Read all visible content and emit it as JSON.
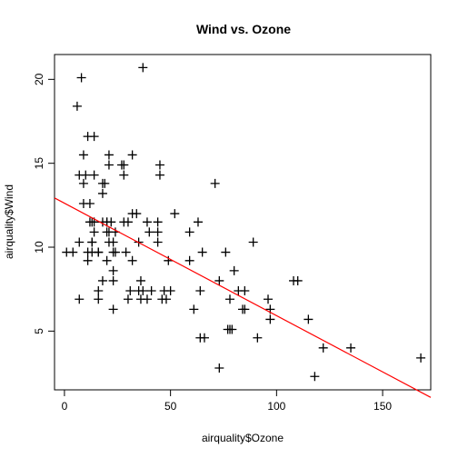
{
  "chart_data": {
    "type": "scatter",
    "title": "Wind vs. Ozone",
    "xlabel": "airquality$Ozone",
    "ylabel": "airquality$Wind",
    "xlim": [
      -4.68,
      172.68
    ],
    "ylim": [
      1.5,
      21.48
    ],
    "x_ticks": [
      0,
      50,
      100,
      150
    ],
    "y_ticks": [
      5,
      10,
      15,
      20
    ],
    "grid": false,
    "marker": "plus",
    "point_color": "#000000",
    "points": [
      {
        "x": 41,
        "y": 7.4
      },
      {
        "x": 36,
        "y": 8.0
      },
      {
        "x": 12,
        "y": 12.6
      },
      {
        "x": 18,
        "y": 11.5
      },
      {
        "x": 28,
        "y": 14.9
      },
      {
        "x": 23,
        "y": 8.6
      },
      {
        "x": 19,
        "y": 13.8
      },
      {
        "x": 8,
        "y": 20.1
      },
      {
        "x": 7,
        "y": 6.9
      },
      {
        "x": 16,
        "y": 9.7
      },
      {
        "x": 11,
        "y": 9.2
      },
      {
        "x": 14,
        "y": 10.9
      },
      {
        "x": 18,
        "y": 13.2
      },
      {
        "x": 14,
        "y": 11.5
      },
      {
        "x": 34,
        "y": 12.0
      },
      {
        "x": 6,
        "y": 18.4
      },
      {
        "x": 30,
        "y": 11.5
      },
      {
        "x": 11,
        "y": 9.7
      },
      {
        "x": 1,
        "y": 9.7
      },
      {
        "x": 11,
        "y": 16.6
      },
      {
        "x": 4,
        "y": 9.7
      },
      {
        "x": 32,
        "y": 12.0
      },
      {
        "x": 45,
        "y": 14.9
      },
      {
        "x": 115,
        "y": 5.7
      },
      {
        "x": 37,
        "y": 7.4
      },
      {
        "x": 29,
        "y": 9.7
      },
      {
        "x": 71,
        "y": 13.8
      },
      {
        "x": 39,
        "y": 11.5
      },
      {
        "x": 23,
        "y": 8.0
      },
      {
        "x": 21,
        "y": 14.9
      },
      {
        "x": 37,
        "y": 20.7
      },
      {
        "x": 20,
        "y": 9.2
      },
      {
        "x": 12,
        "y": 11.5
      },
      {
        "x": 13,
        "y": 10.3
      },
      {
        "x": 135,
        "y": 4.0
      },
      {
        "x": 49,
        "y": 9.2
      },
      {
        "x": 32,
        "y": 9.2
      },
      {
        "x": 64,
        "y": 4.6
      },
      {
        "x": 40,
        "y": 10.9
      },
      {
        "x": 77,
        "y": 5.1
      },
      {
        "x": 97,
        "y": 6.3
      },
      {
        "x": 97,
        "y": 5.7
      },
      {
        "x": 85,
        "y": 7.4
      },
      {
        "x": 10,
        "y": 14.3
      },
      {
        "x": 27,
        "y": 14.9
      },
      {
        "x": 7,
        "y": 14.3
      },
      {
        "x": 48,
        "y": 6.9
      },
      {
        "x": 35,
        "y": 10.3
      },
      {
        "x": 61,
        "y": 6.3
      },
      {
        "x": 79,
        "y": 5.1
      },
      {
        "x": 63,
        "y": 11.5
      },
      {
        "x": 16,
        "y": 6.9
      },
      {
        "x": 80,
        "y": 8.6
      },
      {
        "x": 108,
        "y": 8.0
      },
      {
        "x": 20,
        "y": 11.5
      },
      {
        "x": 52,
        "y": 12.0
      },
      {
        "x": 82,
        "y": 7.4
      },
      {
        "x": 50,
        "y": 7.4
      },
      {
        "x": 64,
        "y": 7.4
      },
      {
        "x": 59,
        "y": 9.2
      },
      {
        "x": 39,
        "y": 6.9
      },
      {
        "x": 9,
        "y": 13.8
      },
      {
        "x": 16,
        "y": 7.4
      },
      {
        "x": 78,
        "y": 6.9
      },
      {
        "x": 35,
        "y": 7.4
      },
      {
        "x": 66,
        "y": 4.6
      },
      {
        "x": 122,
        "y": 4.0
      },
      {
        "x": 89,
        "y": 10.3
      },
      {
        "x": 110,
        "y": 8.0
      },
      {
        "x": 44,
        "y": 11.5
      },
      {
        "x": 28,
        "y": 11.5
      },
      {
        "x": 65,
        "y": 9.7
      },
      {
        "x": 22,
        "y": 11.5
      },
      {
        "x": 59,
        "y": 10.9
      },
      {
        "x": 23,
        "y": 9.7
      },
      {
        "x": 31,
        "y": 7.4
      },
      {
        "x": 44,
        "y": 10.9
      },
      {
        "x": 21,
        "y": 10.3
      },
      {
        "x": 9,
        "y": 15.5
      },
      {
        "x": 45,
        "y": 14.3
      },
      {
        "x": 168,
        "y": 3.4
      },
      {
        "x": 73,
        "y": 8.0
      },
      {
        "x": 76,
        "y": 9.7
      },
      {
        "x": 118,
        "y": 2.3
      },
      {
        "x": 84,
        "y": 6.3
      },
      {
        "x": 85,
        "y": 6.3
      },
      {
        "x": 96,
        "y": 6.9
      },
      {
        "x": 78,
        "y": 5.1
      },
      {
        "x": 73,
        "y": 2.8
      },
      {
        "x": 91,
        "y": 4.6
      },
      {
        "x": 47,
        "y": 7.4
      },
      {
        "x": 32,
        "y": 15.5
      },
      {
        "x": 20,
        "y": 10.9
      },
      {
        "x": 23,
        "y": 10.3
      },
      {
        "x": 21,
        "y": 10.9
      },
      {
        "x": 24,
        "y": 9.7
      },
      {
        "x": 44,
        "y": 10.3
      },
      {
        "x": 21,
        "y": 15.5
      },
      {
        "x": 28,
        "y": 14.3
      },
      {
        "x": 9,
        "y": 12.6
      },
      {
        "x": 13,
        "y": 9.7
      },
      {
        "x": 46,
        "y": 6.9
      },
      {
        "x": 18,
        "y": 13.8
      },
      {
        "x": 13,
        "y": 11.5
      },
      {
        "x": 24,
        "y": 10.9
      },
      {
        "x": 16,
        "y": 9.7
      },
      {
        "x": 13,
        "y": 10.3
      },
      {
        "x": 23,
        "y": 6.3
      },
      {
        "x": 36,
        "y": 6.9
      },
      {
        "x": 7,
        "y": 10.3
      },
      {
        "x": 14,
        "y": 16.6
      },
      {
        "x": 30,
        "y": 6.9
      },
      {
        "x": 14,
        "y": 14.3
      },
      {
        "x": 18,
        "y": 8.0
      },
      {
        "x": 20,
        "y": 11.5
      }
    ],
    "regression_line": {
      "color": "#ff0000",
      "intercept": 12.62,
      "slope": -0.067
    }
  }
}
